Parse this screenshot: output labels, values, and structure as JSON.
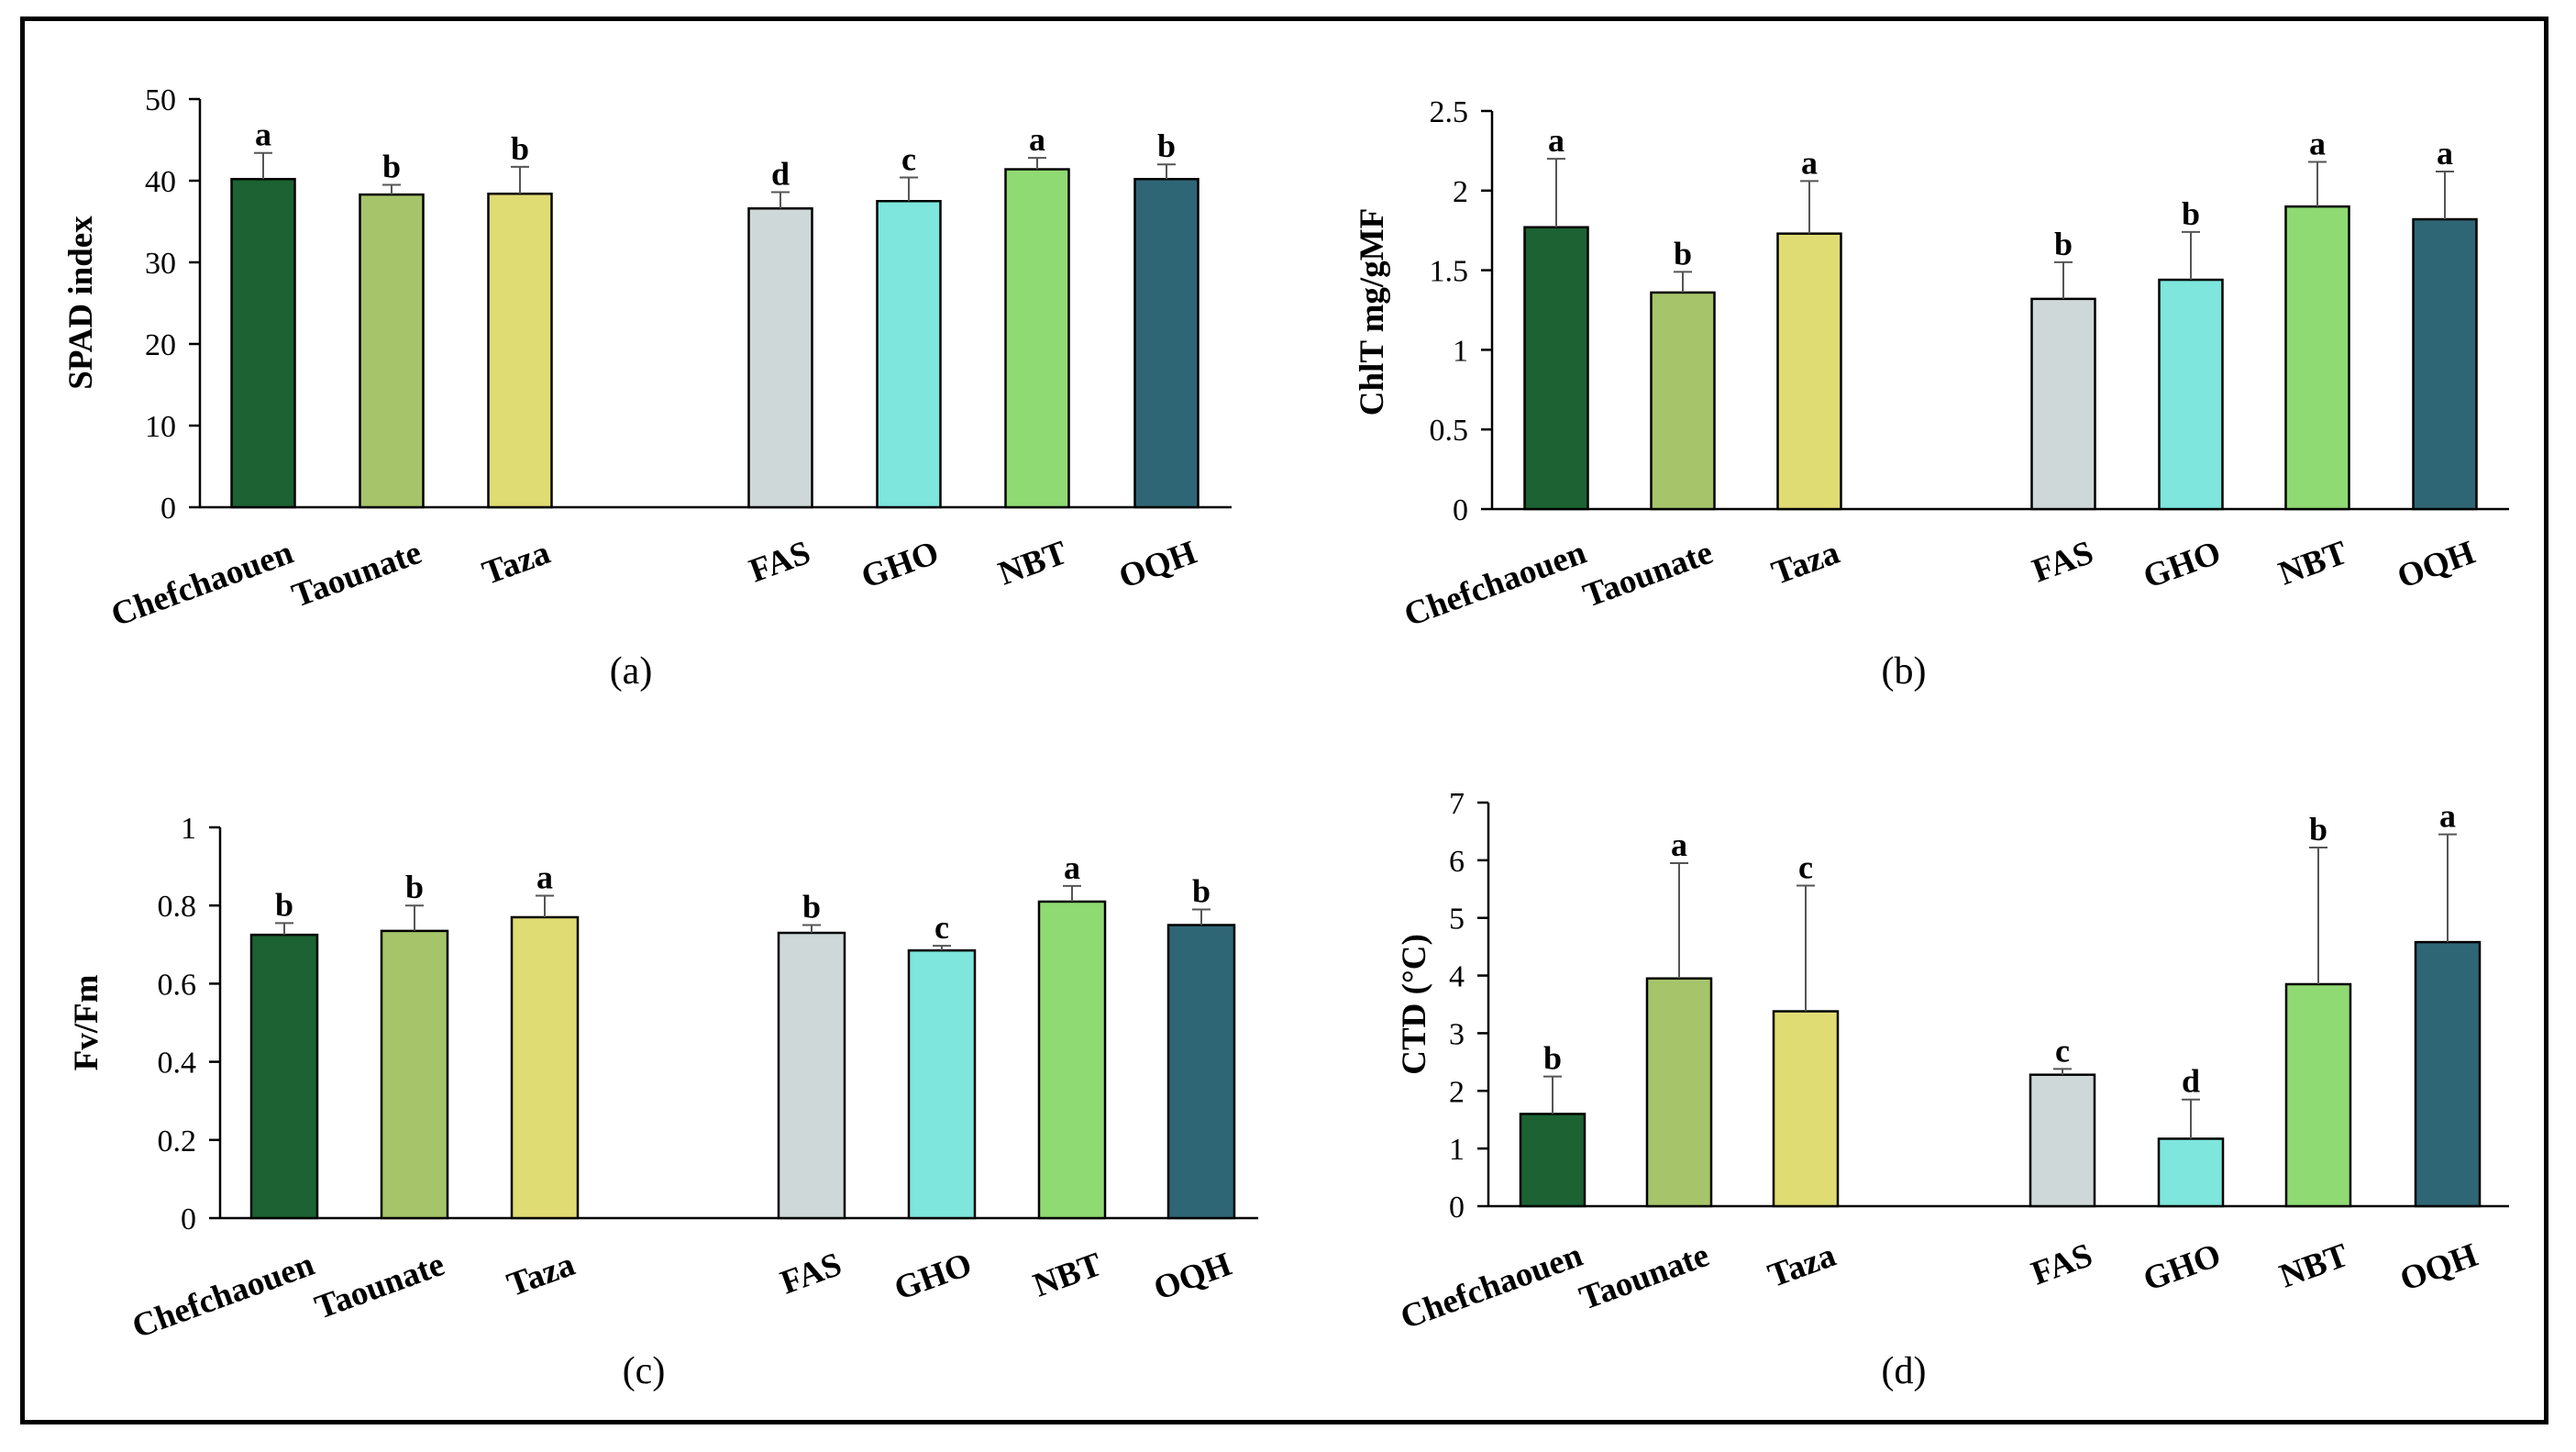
{
  "colors": {
    "Chefchaouen": "#1c6233",
    "Taounate": "#a6c46a",
    "Taza": "#e0dc74",
    "FAS": "#cfd8d8",
    "GHO": "#7ee6dc",
    "NBT": "#8fda72",
    "OQH": "#2f6676"
  },
  "chart_data": [
    {
      "type": "bar",
      "panel_label": "(a)",
      "ylabel": "SPAD index",
      "ylim": [
        0,
        50
      ],
      "yticks": [
        0,
        10,
        20,
        30,
        40,
        50
      ],
      "categories": [
        "Chefchaouen",
        "Taounate",
        "Taza",
        "FAS",
        "GHO",
        "NBT",
        "OQH"
      ],
      "values": [
        40.2,
        38.3,
        38.4,
        36.6,
        37.5,
        41.4,
        40.2
      ],
      "errors": [
        3.2,
        1.2,
        3.3,
        2.0,
        2.9,
        1.4,
        1.8
      ],
      "letters": [
        "a",
        "b",
        "b",
        "d",
        "c",
        "a",
        "b"
      ]
    },
    {
      "type": "bar",
      "panel_label": "(b)",
      "ylabel": "ChlT  mg/gMF",
      "ylim": [
        0,
        2.5
      ],
      "yticks": [
        0,
        0.5,
        1,
        1.5,
        2,
        2.5
      ],
      "categories": [
        "Chefchaouen",
        "Taounate",
        "Taza",
        "FAS",
        "GHO",
        "NBT",
        "OQH"
      ],
      "values": [
        1.77,
        1.36,
        1.73,
        1.32,
        1.44,
        1.9,
        1.82
      ],
      "errors": [
        0.43,
        0.13,
        0.33,
        0.23,
        0.3,
        0.28,
        0.3
      ],
      "letters": [
        "a",
        "b",
        "a",
        "b",
        "b",
        "a",
        "a"
      ]
    },
    {
      "type": "bar",
      "panel_label": "(c)",
      "ylabel": "Fv/Fm",
      "ylim": [
        0,
        1
      ],
      "yticks": [
        0,
        0.2,
        0.4,
        0.6,
        0.8,
        1
      ],
      "categories": [
        "Chefchaouen",
        "Taounate",
        "Taza",
        "FAS",
        "GHO",
        "NBT",
        "OQH"
      ],
      "values": [
        0.725,
        0.735,
        0.77,
        0.73,
        0.685,
        0.81,
        0.75
      ],
      "errors": [
        0.03,
        0.065,
        0.055,
        0.02,
        0.012,
        0.04,
        0.04
      ],
      "letters": [
        "b",
        "b",
        "a",
        "b",
        "c",
        "a",
        "b"
      ]
    },
    {
      "type": "bar",
      "panel_label": "(d)",
      "ylabel": "CTD (°C)",
      "ylim": [
        0,
        7
      ],
      "yticks": [
        0,
        1,
        2,
        3,
        4,
        5,
        6,
        7
      ],
      "categories": [
        "Chefchaouen",
        "Taounate",
        "Taza",
        "FAS",
        "GHO",
        "NBT",
        "OQH"
      ],
      "values": [
        1.6,
        3.95,
        3.38,
        2.28,
        1.17,
        3.85,
        4.58
      ],
      "errors": [
        0.65,
        2.0,
        2.18,
        0.1,
        0.68,
        2.37,
        1.87
      ],
      "letters": [
        "b",
        "a",
        "c",
        "c",
        "d",
        "b",
        "a"
      ]
    }
  ]
}
